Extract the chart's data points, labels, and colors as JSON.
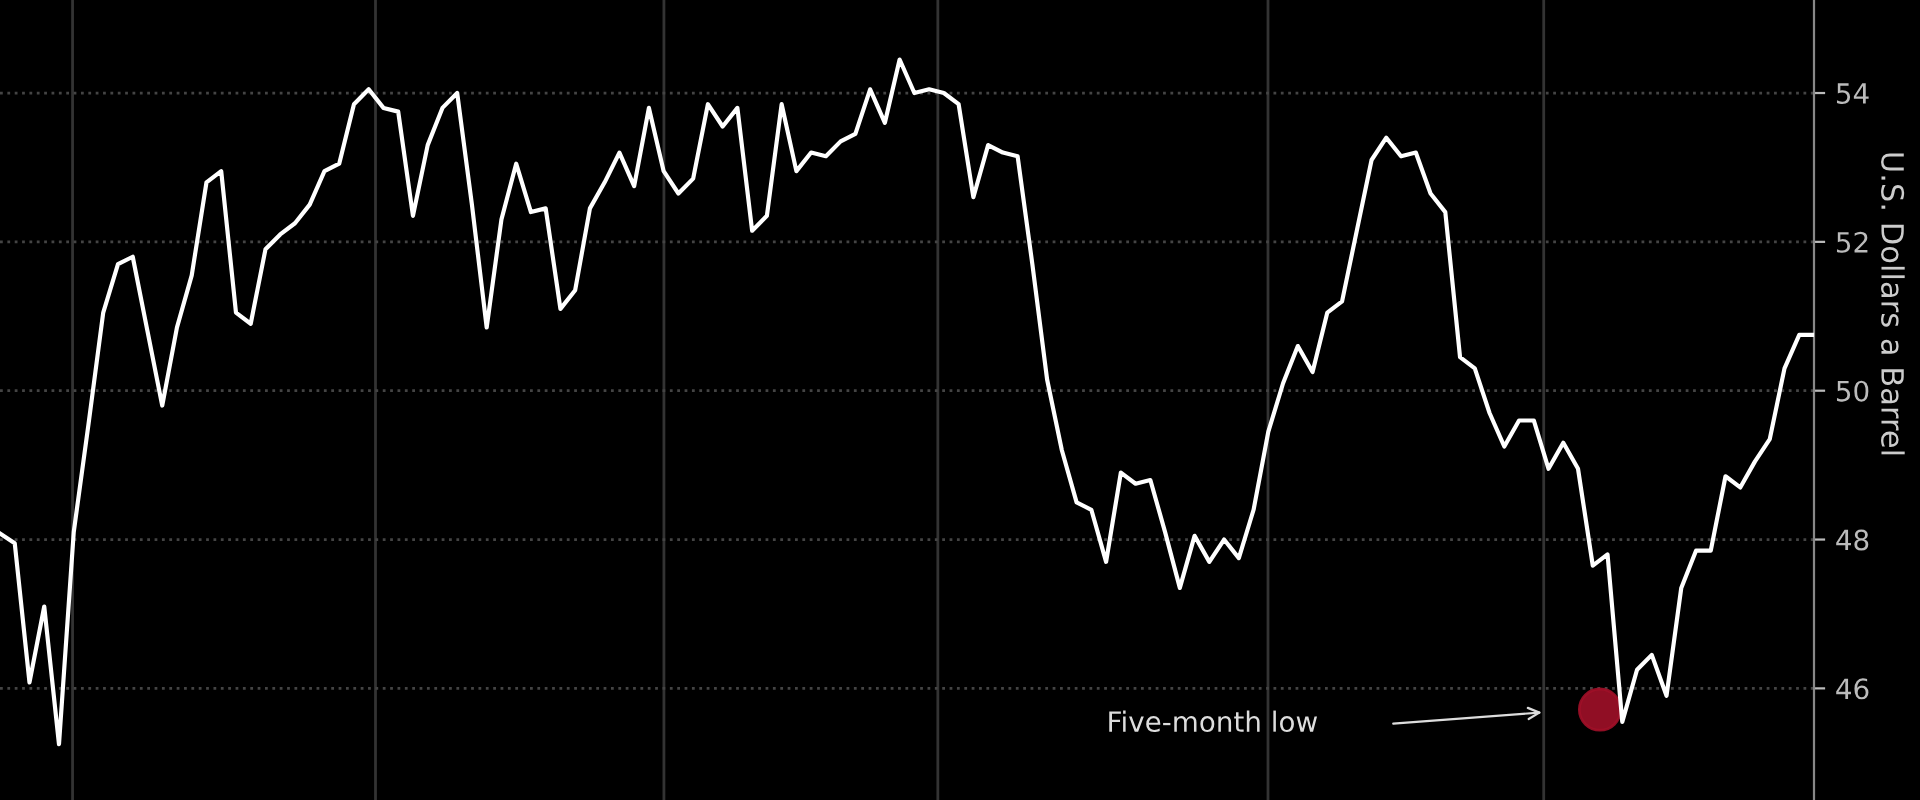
{
  "chart_data": {
    "type": "line",
    "ylabel": "U.S. Dollars a Barrel",
    "categories": [
      null,
      null,
      null,
      null,
      null,
      null,
      null,
      null,
      null,
      null,
      null,
      null,
      null,
      null,
      null,
      null,
      null,
      null,
      null,
      null,
      null,
      null,
      null,
      null,
      null,
      null,
      null,
      null,
      null,
      null,
      null,
      null,
      null,
      null,
      null,
      null,
      null,
      null,
      null,
      null,
      null,
      null,
      null,
      null,
      null,
      null,
      null,
      null,
      null,
      null,
      null,
      null,
      null,
      null,
      null,
      null,
      null,
      null,
      null,
      null,
      null,
      null,
      null,
      null,
      null,
      null,
      null,
      null,
      null,
      null,
      null,
      null,
      null,
      null,
      null,
      null,
      null,
      null,
      null,
      null,
      null,
      null,
      null,
      null,
      null,
      null,
      null,
      null,
      null,
      null,
      null,
      null,
      null,
      null,
      null,
      null,
      null,
      null,
      null,
      null,
      null,
      null,
      null,
      null,
      null,
      null,
      null,
      null,
      null,
      null,
      null,
      null,
      null,
      null,
      null,
      null,
      null,
      null,
      null,
      null,
      null,
      null,
      null,
      null
    ],
    "series": [
      {
        "color": "#ffffff",
        "values": [
          48.08,
          47.95,
          46.08,
          47.1,
          45.25,
          48.1,
          49.55,
          51.05,
          51.7,
          51.8,
          50.8,
          49.8,
          50.85,
          51.55,
          52.8,
          52.95,
          51.05,
          50.9,
          51.9,
          52.1,
          52.25,
          52.5,
          52.95,
          53.05,
          53.85,
          54.05,
          53.8,
          53.75,
          52.35,
          53.3,
          53.8,
          54.0,
          52.5,
          50.85,
          52.3,
          53.05,
          52.4,
          52.45,
          51.1,
          51.35,
          52.45,
          52.8,
          53.2,
          52.75,
          53.8,
          52.95,
          52.65,
          52.85,
          53.85,
          53.55,
          53.8,
          52.15,
          52.35,
          53.85,
          52.95,
          53.2,
          53.15,
          53.35,
          53.45,
          54.05,
          53.6,
          54.45,
          54.0,
          54.05,
          54.0,
          53.85,
          52.6,
          53.3,
          53.2,
          53.15,
          51.7,
          50.15,
          49.2,
          48.5,
          48.4,
          47.7,
          48.9,
          48.75,
          48.8,
          48.1,
          47.35,
          48.05,
          47.7,
          48.0,
          47.75,
          48.4,
          49.45,
          50.1,
          50.6,
          50.25,
          51.05,
          51.2,
          52.15,
          53.1,
          53.4,
          53.15,
          53.2,
          52.65,
          52.4,
          50.45,
          50.3,
          49.7,
          49.25,
          49.6,
          49.6,
          48.95,
          49.3,
          48.95,
          47.65,
          47.8,
          45.55,
          46.25,
          46.45,
          45.9,
          47.35,
          47.85,
          47.85,
          48.85,
          48.7,
          49.05,
          49.35,
          50.3,
          50.75,
          50.75
        ]
      }
    ],
    "ylim": [
      44.5,
      55.25
    ],
    "yticks": [
      46,
      48,
      50,
      52,
      54
    ],
    "tick_labels": "y",
    "grid": "y",
    "marker": "none",
    "line_style": "solid",
    "annotations": [
      "Five-month low"
    ]
  }
}
